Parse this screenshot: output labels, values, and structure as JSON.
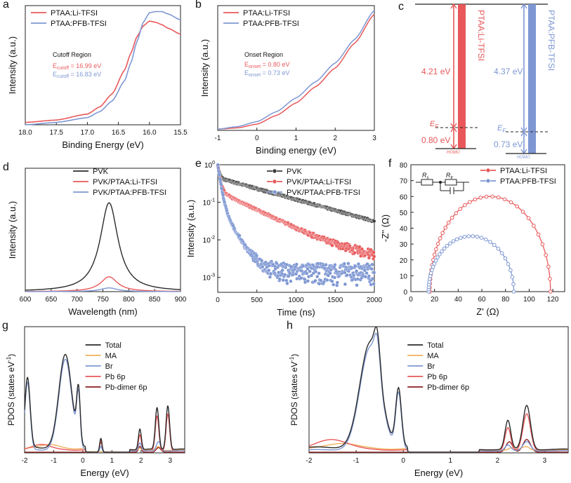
{
  "colors": {
    "red": "#e8585a",
    "blue": "#7e97d3",
    "black": "#2b2b2b",
    "orange": "#f1b05c",
    "darkred": "#8a1e1e"
  },
  "chart_data": [
    {
      "id": "a",
      "panel_label": "a",
      "type": "line",
      "xlabel": "Binding Energy (eV)",
      "ylabel": "Intensity (a.u.)",
      "xlim": [
        18.0,
        15.5
      ],
      "reversed_x": true,
      "ylim": [
        0,
        1
      ],
      "xticks": [
        "18.0",
        "17.5",
        "17.0",
        "16.5",
        "16.0",
        "15.5"
      ],
      "legend": [
        "PTAA:Li-TFSI",
        "PTAA:PFB-TFSI"
      ],
      "annotation_title": "Cutoff Region",
      "annotations": [
        {
          "prefix": "E",
          "sub": "cutoff",
          "text": " = 16.99 eV",
          "series": 0
        },
        {
          "prefix": "E",
          "sub": "cutoff",
          "text": " = 16.83 eV",
          "series": 1
        }
      ],
      "series": [
        {
          "name": "PTAA:Li-TFSI",
          "color": "#e8585a",
          "x": [
            18.0,
            17.5,
            17.0,
            16.8,
            16.6,
            16.4,
            16.3,
            16.2,
            16.1,
            16.0,
            15.9,
            15.8,
            15.7,
            15.5
          ],
          "y": [
            0.02,
            0.04,
            0.09,
            0.15,
            0.26,
            0.46,
            0.6,
            0.74,
            0.83,
            0.87,
            0.86,
            0.84,
            0.81,
            0.76
          ]
        },
        {
          "name": "PTAA:PFB-TFSI",
          "color": "#7e97d3",
          "x": [
            18.0,
            17.5,
            17.0,
            16.8,
            16.6,
            16.4,
            16.3,
            16.2,
            16.1,
            16.0,
            15.9,
            15.8,
            15.7,
            15.5
          ],
          "y": [
            0.0,
            0.02,
            0.06,
            0.11,
            0.2,
            0.37,
            0.52,
            0.7,
            0.86,
            0.94,
            0.95,
            0.95,
            0.93,
            0.88
          ]
        }
      ]
    },
    {
      "id": "b",
      "panel_label": "b",
      "type": "line",
      "xlabel": "Binding energy (eV)",
      "ylabel": "Intensity (a.u.)",
      "xlim": [
        -1,
        3
      ],
      "ylim": [
        0,
        1
      ],
      "xticks": [
        "-1",
        "0",
        "1",
        "2",
        "3"
      ],
      "legend": [
        "PTAA:Li-TFSI",
        "PTAA:PFB-TFSI"
      ],
      "annotation_title": "Onset Region",
      "annotations": [
        {
          "prefix": "E",
          "sub": "onset",
          "text": " = 0.80 eV",
          "series": 0
        },
        {
          "prefix": "E",
          "sub": "onset",
          "text": " = 0.73 eV",
          "series": 1
        }
      ],
      "series": [
        {
          "name": "PTAA:Li-TFSI",
          "color": "#e8585a",
          "x": [
            -1,
            -0.5,
            0,
            0.5,
            1,
            1.5,
            2,
            2.5,
            3
          ],
          "y": [
            0.01,
            0.02,
            0.05,
            0.12,
            0.22,
            0.35,
            0.5,
            0.7,
            0.93
          ]
        },
        {
          "name": "PTAA:PFB-TFSI",
          "color": "#7e97d3",
          "x": [
            -1,
            -0.5,
            0,
            0.5,
            1,
            1.5,
            2,
            2.5,
            3
          ],
          "y": [
            0.01,
            0.03,
            0.07,
            0.15,
            0.26,
            0.39,
            0.54,
            0.73,
            0.96
          ]
        }
      ]
    },
    {
      "id": "c",
      "panel_label": "c",
      "type": "diagram",
      "columns": [
        {
          "label": "PTAA:Li-TFSI",
          "color": "#e8585a",
          "gap": "4.21 eV",
          "ef_label": "E",
          "ef_sub": "F",
          "onset": "0.80 eV",
          "homo": "HOMO"
        },
        {
          "label": "PTAA:PFB-TFSI",
          "color": "#7e97d3",
          "gap": "4.37 eV",
          "ef_label": "E",
          "ef_sub": "F",
          "onset": "0.73 eV",
          "homo": "HOMO"
        }
      ]
    },
    {
      "id": "d",
      "panel_label": "d",
      "type": "line",
      "xlabel": "Wavelength (nm)",
      "ylabel": "Intensity (a.u.)",
      "xlim": [
        600,
        900
      ],
      "ylim": [
        0,
        1
      ],
      "xticks": [
        "600",
        "650",
        "700",
        "750",
        "800",
        "850",
        "900"
      ],
      "legend": [
        "PVK",
        "PVK/PTAA:Li-TFSI",
        "PVK/PTAA:PFB-TFSI"
      ],
      "series": [
        {
          "name": "PVK",
          "color": "#2b2b2b",
          "peak": 762,
          "fwhm": 42,
          "height": 0.72
        },
        {
          "name": "PVK/PTAA:Li-TFSI",
          "color": "#e8585a",
          "peak": 762,
          "fwhm": 40,
          "height": 0.12
        },
        {
          "name": "PVK/PTAA:PFB-TFSI",
          "color": "#7e97d3",
          "peak": 762,
          "fwhm": 40,
          "height": 0.03
        }
      ]
    },
    {
      "id": "e",
      "panel_label": "e",
      "type": "scatter",
      "xlabel": "Time (ns)",
      "ylabel": "Intensity (a.u.)",
      "xlim": [
        0,
        2000
      ],
      "ylim": [
        0.0004,
        1
      ],
      "yscale": "log",
      "xticks": [
        "0",
        "500",
        "1000",
        "1500",
        "2000"
      ],
      "yticks": [
        {
          "base": "10",
          "exp": "0",
          "v": 1
        },
        {
          "base": "10",
          "exp": "-1",
          "v": 0.1
        },
        {
          "base": "10",
          "exp": "-2",
          "v": 0.01
        },
        {
          "base": "10",
          "exp": "-3",
          "v": 0.001
        }
      ],
      "legend": [
        "PVK",
        "PVK/PTAA:Li-TFSI",
        "PVK/PTAA:PFB-TFSI"
      ],
      "series": [
        {
          "name": "PVK",
          "color": "#3a3a3a",
          "a1": 0.55,
          "t1": 20,
          "a2": 0.45,
          "t2": 750,
          "floor": 0
        },
        {
          "name": "PVK/PTAA:Li-TFSI",
          "color": "#e8585a",
          "a1": 0.8,
          "t1": 25,
          "a2": 0.2,
          "t2": 420,
          "floor": 0.003
        },
        {
          "name": "PVK/PTAA:PFB-TFSI",
          "color": "#7e97d3",
          "a1": 0.9,
          "t1": 30,
          "a2": 0.1,
          "t2": 120,
          "floor": 0.0018
        }
      ]
    },
    {
      "id": "f",
      "panel_label": "f",
      "type": "scatter",
      "xlabel": "Z' (Ω)",
      "ylabel": "-Z'' (Ω)",
      "xlim": [
        0,
        130
      ],
      "ylim": [
        0,
        80
      ],
      "xticks": [
        "0",
        "20",
        "40",
        "60",
        "80",
        "100",
        "120"
      ],
      "yticks": [
        "0",
        "10",
        "20",
        "30",
        "40",
        "50",
        "60",
        "70",
        "80"
      ],
      "legend": [
        "PTAA:Li-TFSI",
        "PTAA:PFB-TFSI"
      ],
      "circuit": {
        "r1": "R",
        "r1_sub": "s",
        "r2": "R",
        "r2_sub": "tr"
      },
      "series": [
        {
          "name": "PTAA:Li-TFSI",
          "color": "#e8585a",
          "x_start": 16,
          "x_end": 118,
          "peak": 60
        },
        {
          "name": "PTAA:PFB-TFSI",
          "color": "#7e97d3",
          "x_start": 15,
          "x_end": 87,
          "peak": 35
        }
      ]
    },
    {
      "id": "g",
      "panel_label": "g",
      "type": "line",
      "xlabel": "Energy (eV)",
      "ylabel": "PDOS (states eV",
      "ylabel_sup": "-1",
      "ylabel_end": ")",
      "xlim": [
        -2,
        3.5
      ],
      "ylim": [
        0,
        1
      ],
      "xticks": [
        "-2",
        "-1",
        "0",
        "1",
        "2",
        "3"
      ],
      "legend": [
        "Total",
        "MA",
        "Br",
        "Pb 6p",
        "Pb-dimer 6p"
      ],
      "series": [
        {
          "name": "Total",
          "color": "#2b2b2b",
          "peaks": [
            [
              -1.9,
              0.6,
              0.09
            ],
            [
              -0.6,
              0.8,
              0.22
            ],
            [
              -0.15,
              0.45,
              0.06
            ],
            [
              0.62,
              0.12,
              0.04
            ],
            [
              1.96,
              0.18,
              0.05
            ],
            [
              2.55,
              0.36,
              0.06
            ],
            [
              2.92,
              0.38,
              0.06
            ]
          ],
          "base": 0.04
        },
        {
          "name": "MA",
          "color": "#f1b05c",
          "peaks": [
            [
              -1.2,
              0.04,
              0.3
            ],
            [
              0.4,
              0.005,
              0.5
            ],
            [
              1.95,
              0.02,
              0.05
            ],
            [
              2.6,
              0.03,
              0.08
            ]
          ],
          "base": 0.03
        },
        {
          "name": "Br",
          "color": "#7e97d3",
          "peaks": [
            [
              -1.9,
              0.58,
              0.09
            ],
            [
              -0.6,
              0.78,
              0.22
            ],
            [
              -0.15,
              0.43,
              0.06
            ],
            [
              0.62,
              0.05,
              0.04
            ],
            [
              1.96,
              0.07,
              0.05
            ],
            [
              2.6,
              0.08,
              0.07
            ]
          ],
          "base": 0.02
        },
        {
          "name": "Pb 6p",
          "color": "#e8585a",
          "peaks": [
            [
              0.62,
              0.1,
              0.04
            ],
            [
              1.96,
              0.14,
              0.05
            ],
            [
              2.55,
              0.3,
              0.06
            ],
            [
              2.92,
              0.32,
              0.06
            ],
            [
              -1.4,
              0.05,
              0.3
            ]
          ],
          "base": 0.02
        },
        {
          "name": "Pb-dimer 6p",
          "color": "#8a1e1e",
          "peaks": [
            [
              0.62,
              0.09,
              0.04
            ],
            [
              1.96,
              0.05,
              0.05
            ],
            [
              2.6,
              0.04,
              0.08
            ]
          ],
          "base": 0.0
        }
      ]
    },
    {
      "id": "h",
      "panel_label": "h",
      "type": "line",
      "xlabel": "Energy (eV)",
      "ylabel": "PDOS (states eV",
      "ylabel_sup": "-1",
      "ylabel_end": ")",
      "xlim": [
        -2,
        3.5
      ],
      "ylim": [
        0,
        1
      ],
      "xticks": [
        "-2",
        "-1",
        "0",
        "1",
        "2",
        "3"
      ],
      "legend": [
        "Total",
        "MA",
        "Br",
        "Pb 6p",
        "Pb-dimer 6p"
      ],
      "series": [
        {
          "name": "Total",
          "color": "#2b2b2b",
          "peaks": [
            [
              -0.7,
              0.9,
              0.22
            ],
            [
              -0.1,
              0.5,
              0.06
            ],
            [
              -0.55,
              0.3,
              0.06
            ],
            [
              2.22,
              0.25,
              0.06
            ],
            [
              2.62,
              0.38,
              0.08
            ]
          ],
          "base": 0.04
        },
        {
          "name": "MA",
          "color": "#f1b05c",
          "peaks": [
            [
              -1.3,
              0.05,
              0.3
            ],
            [
              2.3,
              0.02,
              0.05
            ],
            [
              2.6,
              0.03,
              0.08
            ]
          ],
          "base": 0.03
        },
        {
          "name": "Br",
          "color": "#7e97d3",
          "peaks": [
            [
              -0.7,
              0.88,
              0.22
            ],
            [
              -0.1,
              0.48,
              0.06
            ],
            [
              -0.55,
              0.28,
              0.06
            ],
            [
              2.22,
              0.05,
              0.06
            ],
            [
              2.62,
              0.08,
              0.08
            ]
          ],
          "base": 0.02
        },
        {
          "name": "Pb 6p",
          "color": "#e8585a",
          "peaks": [
            [
              -1.5,
              0.09,
              0.35
            ],
            [
              2.22,
              0.2,
              0.06
            ],
            [
              2.62,
              0.32,
              0.08
            ]
          ],
          "base": 0.02
        },
        {
          "name": "Pb-dimer 6p",
          "color": "#8a1e1e",
          "peaks": [
            [
              2.25,
              0.09,
              0.07
            ],
            [
              2.62,
              0.11,
              0.08
            ]
          ],
          "base": 0.0
        }
      ]
    }
  ]
}
